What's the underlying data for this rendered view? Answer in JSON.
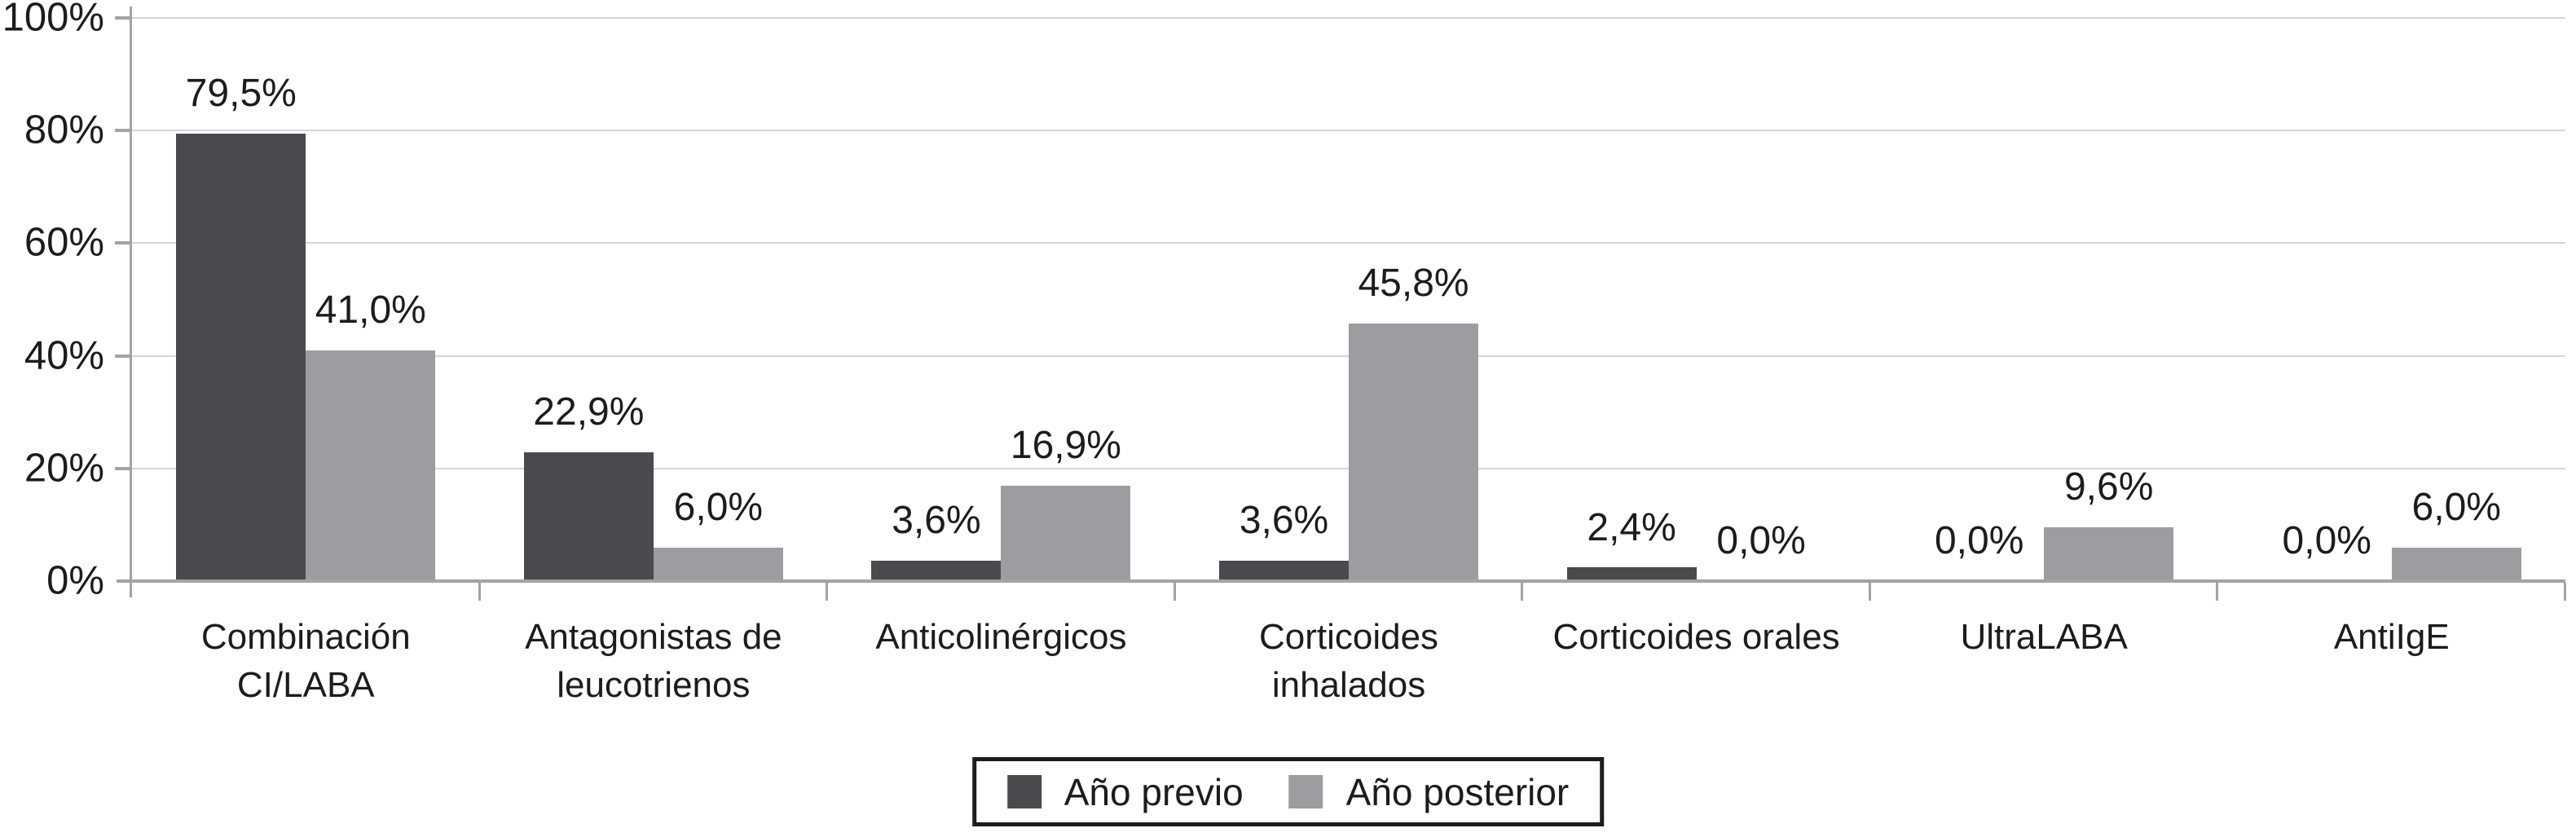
{
  "figure": {
    "background": "#ffffff",
    "text_color": "#1c1c1c",
    "axis_color": "#a3a3a3",
    "gridline_color": "#d6d6d6",
    "legend_border_color": "#1c1c1c"
  },
  "chart_data": {
    "type": "bar",
    "title": "",
    "xlabel": "",
    "ylabel": "",
    "ylim": [
      0,
      100
    ],
    "grid": true,
    "legend_position": "bottom",
    "y_ticks": [
      {
        "label": "100%",
        "value": 100
      },
      {
        "label": "80%",
        "value": 80
      },
      {
        "label": "60%",
        "value": 60
      },
      {
        "label": "40%",
        "value": 40
      },
      {
        "label": "20%",
        "value": 20
      },
      {
        "label": "0%",
        "value": 0
      }
    ],
    "categories": [
      {
        "label_lines": [
          "Combinación",
          "CI/LABA"
        ]
      },
      {
        "label_lines": [
          "Antagonistas de",
          "leucotrienos"
        ]
      },
      {
        "label_lines": [
          "Anticolinérgicos"
        ]
      },
      {
        "label_lines": [
          "Corticoides",
          "inhalados"
        ]
      },
      {
        "label_lines": [
          "Corticoides orales"
        ]
      },
      {
        "label_lines": [
          "UltraLABA"
        ]
      },
      {
        "label_lines": [
          "AntiIgE"
        ]
      }
    ],
    "series": [
      {
        "name": "Año previo",
        "color": "#4a4a4e",
        "values": [
          79.5,
          22.9,
          3.6,
          3.6,
          2.4,
          0.0,
          0.0
        ],
        "value_labels": [
          "79,5%",
          "22,9%",
          "3,6%",
          "3,6%",
          "2,4%",
          "0,0%",
          "0,0%"
        ]
      },
      {
        "name": "Año posterior",
        "color": "#9d9da1",
        "values": [
          41.0,
          6.0,
          16.9,
          45.8,
          0.0,
          9.6,
          6.0
        ],
        "value_labels": [
          "41,0%",
          "6,0%",
          "16,9%",
          "45,8%",
          "0,0%",
          "9,6%",
          "6,0%"
        ]
      }
    ]
  }
}
